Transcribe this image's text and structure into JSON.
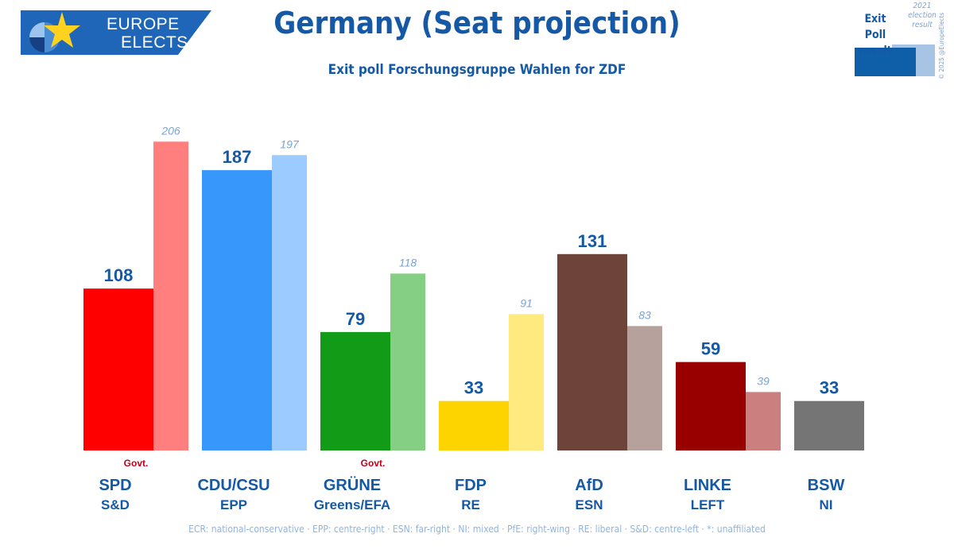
{
  "header": {
    "logo_line1": "EUROPE",
    "logo_line2": "ELECTS",
    "title": "Germany (Seat projection)",
    "subtitle": "Exit poll Forschungsgruppe Wahlen for ZDF"
  },
  "legend": {
    "current_label": "Exit Poll result",
    "previous_label": "2021 election result",
    "copyright": "© 2025 @EuropeElects"
  },
  "footer": "ECR: national-conservative · EPP: centre-right · ESN: far-right · NI: mixed · PfE: right-wing · RE: liberal · S&D: centre-left · *: unaffiliated",
  "colors": {
    "brand_blue": "#1559a6",
    "gov_red": "#c0001a"
  },
  "chart_data": {
    "type": "bar",
    "title": "Germany (Seat projection)",
    "subtitle": "Exit poll Forschungsgruppe Wahlen for ZDF",
    "ylim": [
      0,
      220
    ],
    "grid": false,
    "legend": "top-right",
    "categories": [
      "SPD",
      "CDU/CSU",
      "GRÜNE",
      "FDP",
      "AfD",
      "LINKE",
      "BSW"
    ],
    "groups": [
      "S&D",
      "EPP",
      "Greens/EFA",
      "RE",
      "ESN",
      "LEFT",
      "NI"
    ],
    "government": [
      "Govt.",
      "",
      "Govt.",
      "",
      "",
      "",
      ""
    ],
    "series": [
      {
        "name": "Exit Poll result",
        "values": [
          108,
          187,
          79,
          33,
          131,
          59,
          33
        ],
        "colors": [
          "#ff0000",
          "#3897fb",
          "#129b17",
          "#fdd400",
          "#6e4339",
          "#980000",
          "#757575"
        ]
      },
      {
        "name": "2021 election result",
        "values": [
          206,
          197,
          118,
          91,
          83,
          39,
          null
        ],
        "colors": [
          "#ff7f7f",
          "#9bcbff",
          "#84cf83",
          "#ffea80",
          "#b6a19c",
          "#cc7f7f",
          "#bdbdbd"
        ]
      }
    ]
  }
}
